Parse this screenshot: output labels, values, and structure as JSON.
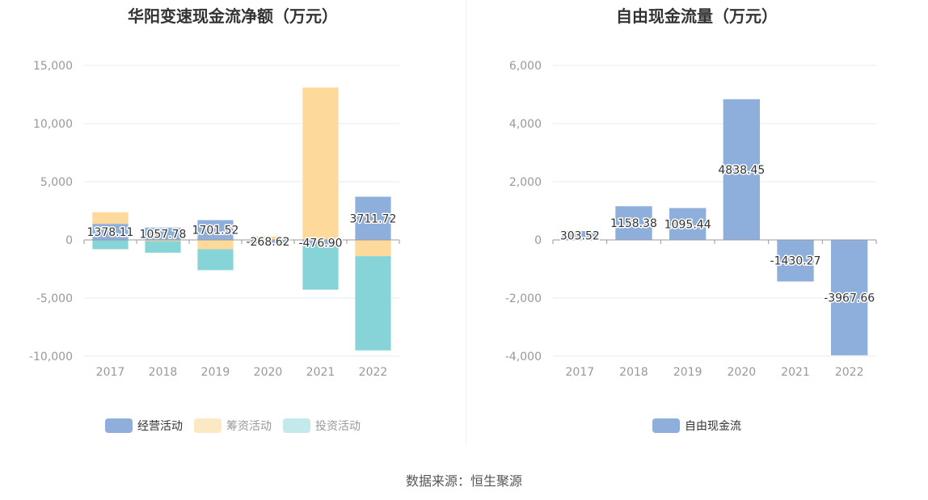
{
  "source_text": "数据来源：恒生聚源",
  "chart_data": [
    {
      "type": "bar",
      "title": "华阳变速现金流净额（万元）",
      "stacked": true,
      "categories": [
        "2017",
        "2018",
        "2019",
        "2020",
        "2021",
        "2022"
      ],
      "ylim": [
        -10000,
        15000
      ],
      "y_ticks": [
        15000,
        10000,
        5000,
        0,
        -5000,
        -10000
      ],
      "y_tick_labels": [
        "15,000",
        "10,000",
        "5,000",
        "0",
        "-5,000",
        "-10,000"
      ],
      "grid": true,
      "legend_position": "bottom",
      "series": [
        {
          "name": "经营活动",
          "color": "#8eaedb",
          "values": [
            1378.11,
            1057.78,
            1701.52,
            -268.62,
            -476.9,
            3711.72
          ],
          "labels": [
            "1378.11",
            "1057.78",
            "1701.52",
            "-268.62",
            "-476.90",
            "3711.72"
          ]
        },
        {
          "name": "筹资活动",
          "color": "#fdd99b",
          "values": [
            1000,
            -100,
            -800,
            300,
            13100,
            -1400
          ]
        },
        {
          "name": "投资活动",
          "color": "#86d4d8",
          "values": [
            -800,
            -1000,
            -1800,
            -50,
            -3800,
            -8100
          ]
        }
      ]
    },
    {
      "type": "bar",
      "title": "自由现金流量（万元）",
      "categories": [
        "2017",
        "2018",
        "2019",
        "2020",
        "2021",
        "2022"
      ],
      "ylim": [
        -4000,
        6000
      ],
      "y_ticks": [
        6000,
        4000,
        2000,
        0,
        -2000,
        -4000
      ],
      "y_tick_labels": [
        "6,000",
        "4,000",
        "2,000",
        "0",
        "-2,000",
        "-4,000"
      ],
      "grid": true,
      "legend_position": "bottom",
      "series": [
        {
          "name": "自由现金流",
          "color": "#8eaedb",
          "values": [
            303.52,
            1158.38,
            1095.44,
            4838.45,
            -1430.27,
            -3967.66
          ],
          "labels": [
            "303.52",
            "1158.38",
            "1095.44",
            "4838.45",
            "-1430.27",
            "-3967.66"
          ]
        }
      ]
    }
  ]
}
